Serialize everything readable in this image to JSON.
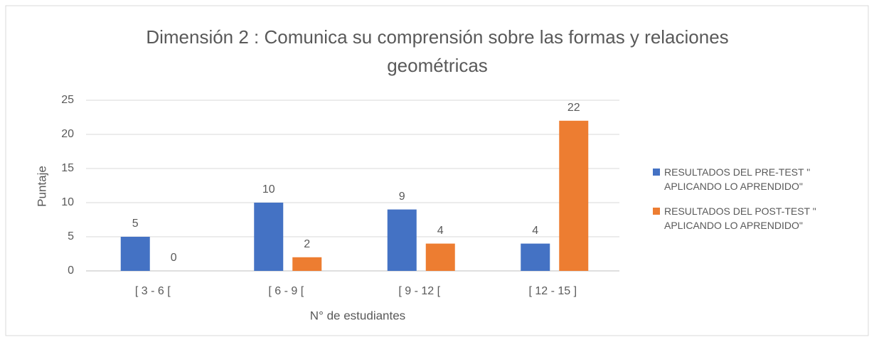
{
  "chart_data": {
    "type": "bar",
    "title": "Dimensión 2 : Comunica su comprensión sobre las formas y relaciones geométricas",
    "x_label": "N° de estudiantes",
    "y_label": "Puntaje",
    "categories": [
      "[ 3 - 6 [",
      "[ 6 - 9 [",
      "[ 9 - 12 [",
      "[ 12 - 15 ]"
    ],
    "series": [
      {
        "name": "RESULTADOS DEL PRE-TEST \" APLICANDO LO APRENDIDO\"",
        "color": "#4472c4",
        "values": [
          5,
          10,
          9,
          4
        ]
      },
      {
        "name": "RESULTADOS DEL POST-TEST \" APLICANDO LO APRENDIDO\"",
        "color": "#ed7d31",
        "values": [
          0,
          2,
          4,
          22
        ]
      }
    ],
    "ylim": [
      0,
      25
    ],
    "yticks": [
      0,
      5,
      10,
      15,
      20,
      25
    ],
    "grid": true,
    "legend": "right"
  }
}
